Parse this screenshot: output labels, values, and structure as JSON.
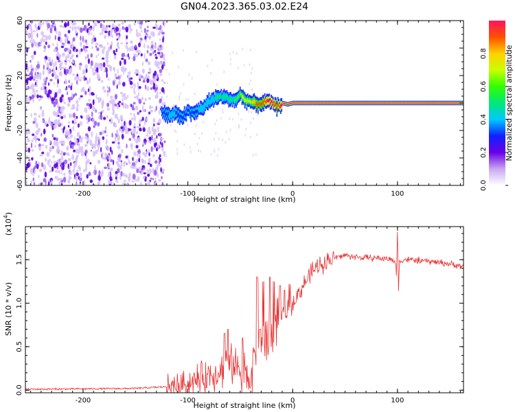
{
  "title": "GN04.2023.365.03.02.E24",
  "chart_data": [
    {
      "type": "heatmap",
      "panel": "spectrogram",
      "xlabel": "Height of straight line (km)",
      "ylabel": "Frequency (Hz)",
      "xlim": [
        -255,
        163
      ],
      "ylim": [
        -60,
        60
      ],
      "xticks": [
        -200,
        -100,
        0,
        100
      ],
      "yticks": [
        -60,
        -40,
        -20,
        0,
        20,
        40,
        60
      ],
      "colorbar": {
        "label": "Normalized spectral amplitude",
        "range": [
          0.0,
          1.0
        ],
        "ticks": [
          "0.0",
          "0.2",
          "0.4",
          "0.6",
          "0.8"
        ],
        "colormap": [
          "#ffffff",
          "#c8a8f0",
          "#6a00e8",
          "#1020ff",
          "#00c8ff",
          "#00e878",
          "#30ff00",
          "#c8ff00",
          "#ffd000",
          "#ff5000",
          "#ff1460"
        ]
      },
      "noise_region_x": [
        -255,
        -122
      ],
      "signal_track": {
        "x": [
          -125,
          -118,
          -112,
          -105,
          -100,
          -95,
          -90,
          -85,
          -80,
          -75,
          -70,
          -65,
          -60,
          -55,
          -50,
          -45,
          -40,
          -35,
          -30,
          -25,
          -20,
          -15,
          -10,
          -5,
          0,
          50,
          100,
          163
        ],
        "freq": [
          -7,
          -9,
          -8,
          -10,
          -6,
          -8,
          -5,
          -3,
          1,
          3,
          5,
          4,
          3,
          2,
          6,
          2,
          1,
          -1,
          0,
          1,
          0,
          -3,
          0,
          -1,
          0,
          0,
          0,
          0
        ],
        "amplitude": [
          0.3,
          0.35,
          0.35,
          0.3,
          0.35,
          0.3,
          0.35,
          0.35,
          0.4,
          0.45,
          0.45,
          0.45,
          0.5,
          0.55,
          0.65,
          0.7,
          0.75,
          0.85,
          0.9,
          0.95,
          1.0,
          0.9,
          1.0,
          1.0,
          1.0,
          1.0,
          1.0,
          1.0
        ]
      }
    },
    {
      "type": "line",
      "panel": "snr",
      "xlabel": "Height of straight line (km)",
      "ylabel": "SNR (10 * v/v)",
      "scale_label": "(x10^4)",
      "xlim": [
        -255,
        163
      ],
      "ylim": [
        -0.03,
        1.88
      ],
      "xticks": [
        -200,
        -100,
        0,
        100
      ],
      "yticks": [
        "0.0",
        "0.5",
        "1.0",
        "1.5"
      ],
      "color": "#e83030",
      "series": [
        {
          "x": [
            -255,
            -200,
            -150,
            -120,
            -110,
            -100,
            -90,
            -80,
            -70,
            -60,
            -55,
            -50,
            -45,
            -40,
            -35,
            -30,
            -25,
            -20,
            -15,
            -10,
            -5,
            0,
            5,
            10,
            15,
            20,
            25,
            30,
            40,
            50,
            60,
            70,
            80,
            90,
            95,
            98,
            99,
            100,
            101,
            102,
            105,
            110,
            120,
            130,
            140,
            150,
            163
          ],
          "y": [
            0.01,
            0.015,
            0.02,
            0.04,
            0.05,
            0.08,
            0.12,
            0.18,
            0.22,
            0.28,
            0.3,
            0.22,
            0.18,
            0.15,
            0.5,
            0.6,
            0.55,
            0.65,
            0.8,
            0.85,
            0.9,
            1.0,
            1.1,
            1.2,
            1.3,
            1.38,
            1.43,
            1.47,
            1.52,
            1.55,
            1.53,
            1.52,
            1.52,
            1.51,
            1.5,
            1.48,
            1.3,
            1.85,
            1.15,
            1.48,
            1.5,
            1.5,
            1.49,
            1.48,
            1.47,
            1.45,
            1.42
          ]
        }
      ],
      "spikes": {
        "x": [
          -65,
          -62,
          -48,
          -34,
          -33,
          -31,
          -28,
          -22,
          -18,
          -12,
          -8,
          -3
        ],
        "y": [
          0.65,
          0.7,
          0.6,
          1.3,
          1.25,
          0.7,
          1.25,
          1.3,
          1.25,
          1.2,
          1.15,
          1.22
        ]
      }
    }
  ]
}
